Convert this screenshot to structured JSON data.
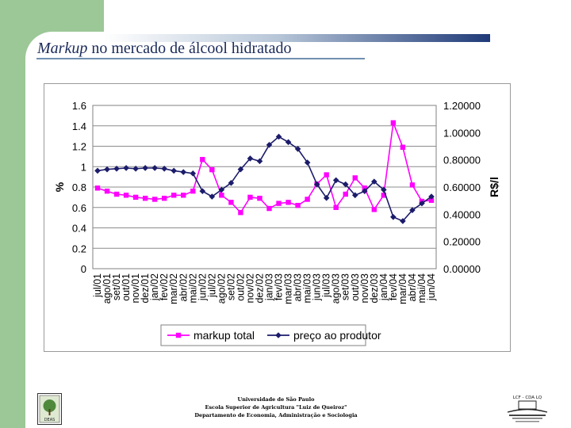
{
  "slide": {
    "title_italic": "Markup",
    "title_rest": " no mercado de álcool hidratado"
  },
  "footer": {
    "line1": "Universidade de São Paulo",
    "line2": "Escola Superior de Agricultura \"Luiz de Queiroz\"",
    "line3": "Departamento de Economia, Administração e Sociologia"
  },
  "logos": {
    "left_text": "DEAS",
    "right_text": "LCF - CDA LQ"
  },
  "colors": {
    "markup": "#ff00ff",
    "price": "#1c1c6b",
    "sidebar": "#9cc797"
  },
  "chart_data": {
    "type": "line",
    "title": "",
    "xlabel": "",
    "ylabel": "%",
    "ylabel_right": "R$/l",
    "categories": [
      "jul/01",
      "ago/01",
      "set/01",
      "out/01",
      "nov/01",
      "dez/01",
      "jan/02",
      "fev/02",
      "mar/02",
      "abr/02",
      "mai/02",
      "jun/02",
      "jul/02",
      "ago/02",
      "set/02",
      "out/02",
      "nov/02",
      "dez/02",
      "jan/03",
      "fev/03",
      "mar/03",
      "abr/03",
      "mai/03",
      "jun/03",
      "jul/03",
      "ago/03",
      "set/03",
      "out/03",
      "nov/03",
      "dez/03",
      "jan/04",
      "fev/04",
      "mar/04",
      "abr/04",
      "mai/04",
      "jun/04"
    ],
    "x_tick_labels": [
      "jul/01",
      "ago/01",
      "set/01",
      "out/01",
      "nov/01",
      "dez/01",
      "jan/02",
      "fev/02",
      "mar/02",
      "abr/02",
      "mai/02",
      "jun/02",
      "jul/02",
      "ago/02",
      "set/02",
      "out/02",
      "nov/02",
      "dez/02",
      "jan/03",
      "fev/03",
      "mar/03",
      "abr/03",
      "mai/03",
      "jun/03",
      "jul/03",
      "ago/03",
      "set/03",
      "out/03",
      "nov/03",
      "dez/03",
      "jan/04",
      "fev/04",
      "mar/04",
      "abr/04",
      "mai/04",
      "jun/04"
    ],
    "ylim": [
      0,
      1.6
    ],
    "y_ticks": [
      "0",
      "0.2",
      "0.4",
      "0.6",
      "0.8",
      "1",
      "1.2",
      "1.4",
      "1.6"
    ],
    "ylim_right": [
      0,
      1.2
    ],
    "y_ticks_right": [
      "0.00000",
      "0.20000",
      "0.40000",
      "0.60000",
      "0.80000",
      "1.00000",
      "1.20000"
    ],
    "series": [
      {
        "name": "markup total",
        "axis": "left",
        "marker": "square",
        "values": [
          0.79,
          0.76,
          0.73,
          0.72,
          0.7,
          0.69,
          0.68,
          0.69,
          0.72,
          0.72,
          0.76,
          1.07,
          0.97,
          0.72,
          0.65,
          0.55,
          0.7,
          0.69,
          0.59,
          0.64,
          0.65,
          0.62,
          0.68,
          0.83,
          0.92,
          0.6,
          0.73,
          0.89,
          0.79,
          0.58,
          0.72,
          1.43,
          1.19,
          0.82,
          0.66,
          0.67
        ]
      },
      {
        "name": "preço ao produtor",
        "axis": "right",
        "marker": "diamond",
        "values": [
          0.72,
          0.73,
          0.735,
          0.74,
          0.735,
          0.74,
          0.74,
          0.735,
          0.72,
          0.71,
          0.7,
          0.57,
          0.53,
          0.58,
          0.63,
          0.73,
          0.81,
          0.79,
          0.91,
          0.97,
          0.93,
          0.88,
          0.78,
          0.62,
          0.52,
          0.65,
          0.62,
          0.54,
          0.57,
          0.64,
          0.58,
          0.38,
          0.35,
          0.43,
          0.48,
          0.53
        ]
      }
    ],
    "legend": {
      "position": "bottom"
    },
    "grid": {
      "horizontal": true,
      "vertical": false
    }
  }
}
